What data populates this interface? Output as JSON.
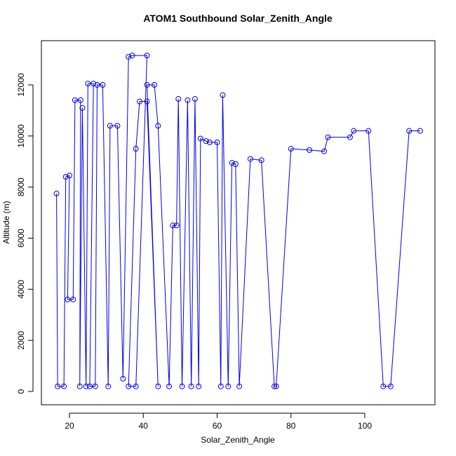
{
  "chart_data": {
    "type": "line",
    "title": "ATOM1 Southbound Solar_Zenith_Angle",
    "x_label": "Solar_Zenith_Angle",
    "y_label": "Altitude (m)",
    "xlim": [
      12.4,
      119.0
    ],
    "ylim": [
      -522,
      13730
    ],
    "xticks": [
      20,
      40,
      60,
      80,
      100
    ],
    "yticks": [
      0,
      2000,
      4000,
      6000,
      8000,
      10000,
      12000
    ],
    "grid": false,
    "series": [
      {
        "name": "Altitude",
        "color": "#0000ee",
        "x": [
          16.5,
          16.8,
          18.5,
          19,
          20,
          19.5,
          21,
          21.5,
          23,
          22.8,
          23.5,
          24.5,
          25,
          26.5,
          25.5,
          27,
          27.5,
          29,
          30.5,
          31,
          33,
          34.5,
          36,
          37,
          41,
          38,
          36,
          38,
          39,
          41,
          44,
          41,
          43,
          44,
          47,
          48,
          49,
          49.5,
          50.5,
          52,
          53,
          54,
          55,
          55.5,
          57,
          58,
          60,
          61,
          61.5,
          63,
          64,
          65,
          66,
          69,
          72,
          75.5,
          76,
          80,
          85,
          89,
          90,
          96,
          97,
          101,
          105,
          107,
          112,
          115
        ],
        "values": [
          7750,
          200,
          200,
          8400,
          8450,
          3600,
          3600,
          11400,
          11400,
          200,
          11100,
          200,
          12050,
          12050,
          200,
          200,
          12000,
          12000,
          200,
          10400,
          10400,
          500,
          13100,
          13150,
          13150,
          200,
          200,
          9500,
          11350,
          11350,
          200,
          12000,
          12000,
          10400,
          200,
          6500,
          6500,
          11450,
          200,
          11400,
          200,
          11450,
          200,
          9900,
          9800,
          9750,
          9750,
          200,
          11600,
          200,
          8950,
          8900,
          200,
          9100,
          9050,
          200,
          200,
          9500,
          9450,
          9400,
          9950,
          9950,
          10200,
          10200,
          200,
          200,
          10200,
          10200
        ]
      }
    ]
  }
}
